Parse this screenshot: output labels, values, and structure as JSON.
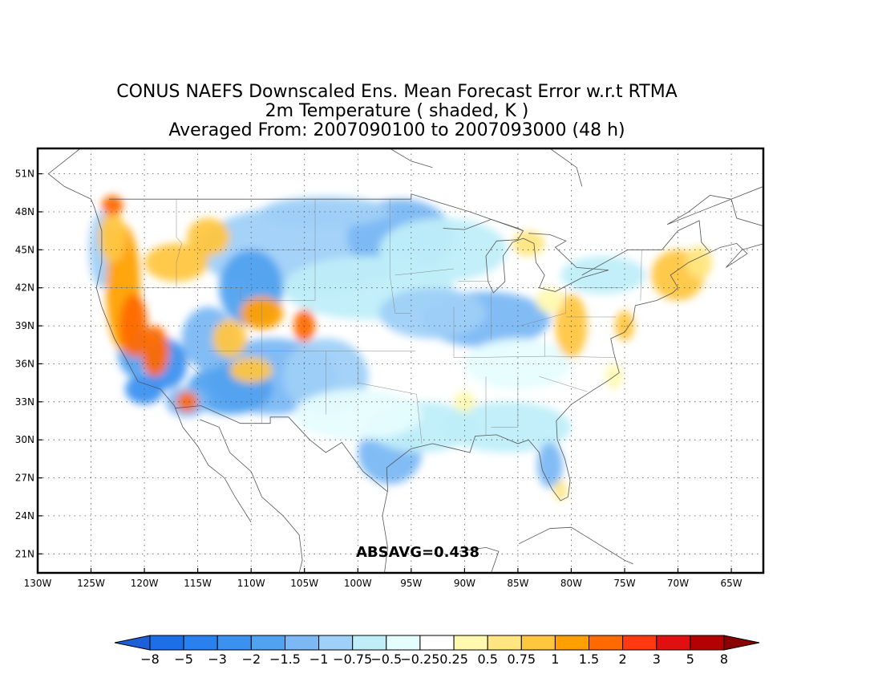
{
  "title": {
    "line1": "CONUS NAEFS Downscaled Ens. Mean Forecast Error w.r.t RTMA",
    "line2": "2m Temperature ( shaded, K )",
    "line3": "Averaged From: 2007090100 to 2007093000 (48 h)"
  },
  "map": {
    "lon_range": [
      -130,
      -62
    ],
    "lat_range": [
      19.5,
      53
    ],
    "lat_ticks": [
      "21N",
      "24N",
      "27N",
      "30N",
      "33N",
      "36N",
      "39N",
      "42N",
      "45N",
      "48N",
      "51N"
    ],
    "lat_values": [
      21,
      24,
      27,
      30,
      33,
      36,
      39,
      42,
      45,
      48,
      51
    ],
    "lon_ticks": [
      "130W",
      "125W",
      "120W",
      "115W",
      "110W",
      "105W",
      "100W",
      "95W",
      "90W",
      "85W",
      "80W",
      "75W",
      "70W",
      "65W"
    ],
    "lon_values": [
      -130,
      -125,
      -120,
      -115,
      -110,
      -105,
      -100,
      -95,
      -90,
      -85,
      -80,
      -75,
      -70,
      -65
    ],
    "grid": "dotted"
  },
  "stat": {
    "text": "ABSAVG=0.438"
  },
  "colorbar": {
    "labels": [
      "-8",
      "-5",
      "-3",
      "-2",
      "-1.5",
      "-1",
      "-0.75",
      "-0.5",
      "-0.25",
      "0.25",
      "0.5",
      "0.75",
      "1",
      "1.5",
      "2",
      "3",
      "5",
      "8"
    ],
    "colors": [
      "#1c5fd8",
      "#1e6ee8",
      "#2a80ee",
      "#3c91f0",
      "#51a2f0",
      "#7bb8f4",
      "#9fd0f8",
      "#bfeef9",
      "#e6fdfe",
      "#ffffff",
      "#fff9b0",
      "#ffe680",
      "#ffc640",
      "#ffa000",
      "#ff6a00",
      "#ff3a10",
      "#e01010",
      "#b30000",
      "#8a0000"
    ]
  }
}
